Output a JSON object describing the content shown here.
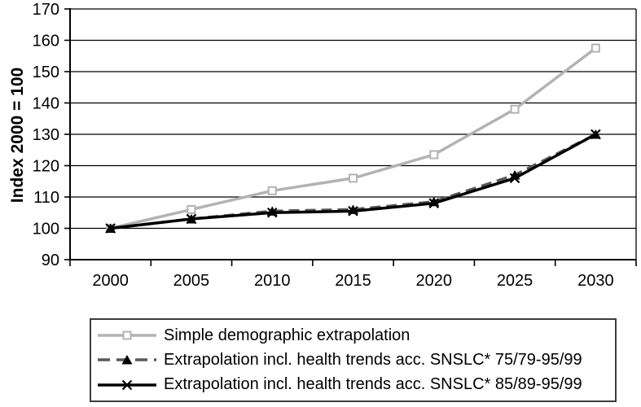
{
  "chart_data": {
    "type": "line",
    "title": "",
    "xlabel": "",
    "ylabel": "Index 2000 = 100",
    "categories": [
      "2000",
      "2005",
      "2010",
      "2015",
      "2020",
      "2025",
      "2030"
    ],
    "yticks": [
      90,
      100,
      110,
      120,
      130,
      140,
      150,
      160,
      170
    ],
    "ylim": [
      90,
      170
    ],
    "grid": "horizontal",
    "legend_position": "bottom-boxed",
    "series": [
      {
        "name": "Simple demographic extrapolation",
        "marker": "square",
        "line": "solid",
        "color": "#b3b3b3",
        "values": [
          100,
          106,
          112,
          116,
          123.5,
          138,
          157.5
        ]
      },
      {
        "name": "Extrapolation incl. health trends acc. SNSLC* 75/79-95/99",
        "marker": "triangle",
        "line": "dashed",
        "color": "#595959",
        "marker_color": "#000000",
        "values": [
          100,
          103,
          105.5,
          106,
          108.5,
          117,
          130
        ]
      },
      {
        "name": "Extrapolation incl. health trends acc. SNSLC* 85/89-95/99",
        "marker": "x",
        "line": "solid",
        "color": "#000000",
        "marker_color": "#000000",
        "values": [
          100,
          103,
          105,
          105.5,
          108,
          116,
          130
        ]
      }
    ]
  }
}
